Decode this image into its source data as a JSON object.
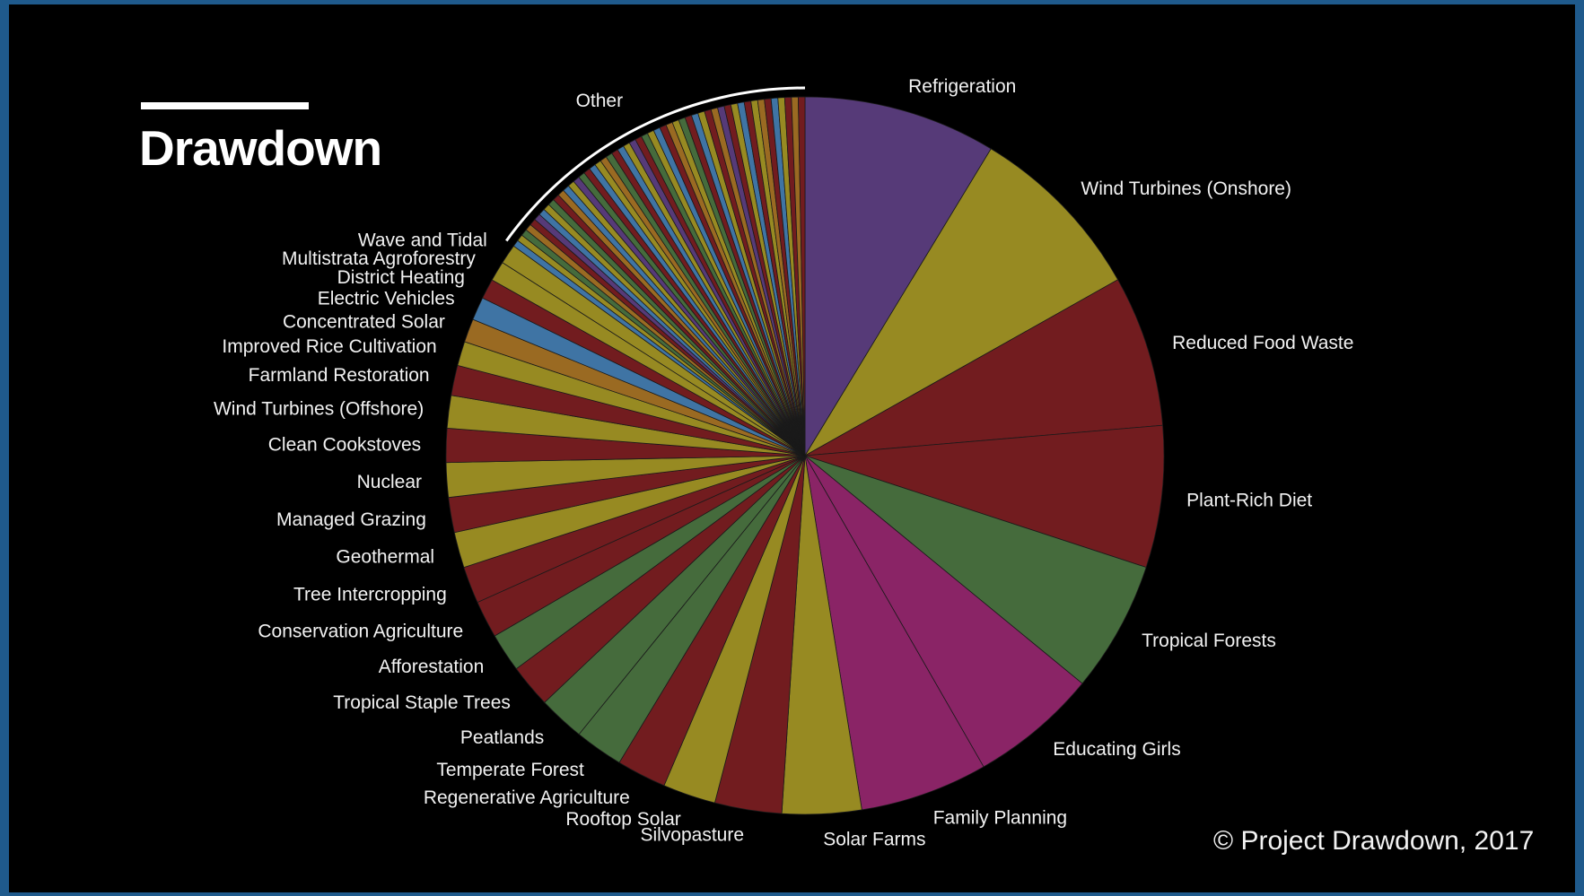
{
  "brand": {
    "title": "Drawdown",
    "copyright": "© Project Drawdown, 2017"
  },
  "chart_data": {
    "type": "pie",
    "title": "",
    "slices": [
      {
        "label": "Refrigeration",
        "value": 89.74,
        "color": "#563a78"
      },
      {
        "label": "Wind Turbines (Onshore)",
        "value": 84.6,
        "color": "#978a22"
      },
      {
        "label": "Reduced Food Waste",
        "value": 70.53,
        "color": "#721c1f"
      },
      {
        "label": "Plant-Rich Diet",
        "value": 66.11,
        "color": "#721c1f"
      },
      {
        "label": "Tropical Forests",
        "value": 61.23,
        "color": "#456b3c"
      },
      {
        "label": "Educating Girls",
        "value": 59.6,
        "color": "#8a2466"
      },
      {
        "label": "Family Planning",
        "value": 59.6,
        "color": "#8a2466"
      },
      {
        "label": "Solar Farms",
        "value": 36.9,
        "color": "#978a22"
      },
      {
        "label": "Silvopasture",
        "value": 31.19,
        "color": "#721c1f"
      },
      {
        "label": "Rooftop Solar",
        "value": 24.6,
        "color": "#978a22"
      },
      {
        "label": "Regenerative Agriculture",
        "value": 23.15,
        "color": "#721c1f"
      },
      {
        "label": "Temperate Forest",
        "value": 22.61,
        "color": "#456b3c"
      },
      {
        "label": "Peatlands",
        "value": 21.57,
        "color": "#456b3c"
      },
      {
        "label": "Tropical Staple Trees",
        "value": 20.19,
        "color": "#721c1f"
      },
      {
        "label": "Afforestation",
        "value": 18.06,
        "color": "#456b3c"
      },
      {
        "label": "Conservation Agriculture",
        "value": 17.35,
        "color": "#721c1f"
      },
      {
        "label": "Tree Intercropping",
        "value": 17.2,
        "color": "#721c1f"
      },
      {
        "label": "Geothermal",
        "value": 16.6,
        "color": "#978a22"
      },
      {
        "label": "Managed Grazing",
        "value": 16.34,
        "color": "#721c1f"
      },
      {
        "label": "Nuclear",
        "value": 16.09,
        "color": "#978a22"
      },
      {
        "label": "Clean Cookstoves",
        "value": 15.81,
        "color": "#721c1f"
      },
      {
        "label": "Wind Turbines (Offshore)",
        "value": 15.2,
        "color": "#978a22"
      },
      {
        "label": "Farmland Restoration",
        "value": 14.08,
        "color": "#721c1f"
      },
      {
        "label": "Improved Rice Cultivation",
        "value": 11.34,
        "color": "#978a22"
      },
      {
        "label": "Concentrated Solar",
        "value": 10.9,
        "color": "#9a6a22"
      },
      {
        "label": "Electric Vehicles",
        "value": 10.8,
        "color": "#3f74a4"
      },
      {
        "label": "District Heating",
        "value": 9.38,
        "color": "#721c1f"
      },
      {
        "label": "Multistrata Agroforestry",
        "value": 9.28,
        "color": "#978a22"
      },
      {
        "label": "Wave and Tidal",
        "value": 9.2,
        "color": "#978a22"
      }
    ],
    "other": {
      "label": "Other",
      "value": 156.0,
      "colors": [
        "#3f74a4",
        "#978a22",
        "#456b3c",
        "#9a6a22",
        "#721c1f",
        "#563a78",
        "#3f74a4",
        "#978a22",
        "#456b3c",
        "#721c1f",
        "#9a6a22",
        "#3f74a4",
        "#978a22",
        "#563a78",
        "#456b3c",
        "#721c1f",
        "#3f74a4",
        "#978a22",
        "#9a6a22",
        "#456b3c",
        "#721c1f",
        "#3f74a4",
        "#978a22",
        "#563a78",
        "#721c1f",
        "#456b3c",
        "#978a22",
        "#3f74a4",
        "#721c1f",
        "#9a6a22",
        "#978a22",
        "#456b3c",
        "#721c1f",
        "#3f74a4",
        "#978a22",
        "#721c1f",
        "#9a6a22",
        "#563a78",
        "#721c1f",
        "#978a22",
        "#3f74a4",
        "#721c1f",
        "#978a22",
        "#9a6a22",
        "#721c1f",
        "#3f74a4",
        "#978a22",
        "#721c1f",
        "#9a6a22",
        "#721c1f"
      ]
    },
    "legend": "none",
    "start": "top, clockwise"
  }
}
